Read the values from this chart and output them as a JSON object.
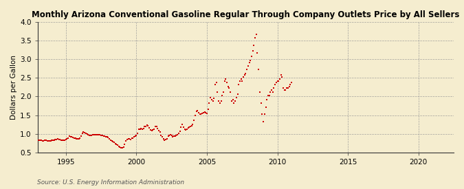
{
  "title": "Monthly Arizona Conventional Gasoline Regular Through Company Outlets Price by All Sellers",
  "ylabel": "Dollars per Gallon",
  "source": "Source: U.S. Energy Information Administration",
  "background_color": "#f5edcf",
  "plot_background_color": "#f5edcf",
  "marker_color": "#cc0000",
  "marker_size": 2.5,
  "xlim_start": 1993.0,
  "xlim_end": 2022.5,
  "ylim": [
    0.5,
    4.0
  ],
  "yticks": [
    0.5,
    1.0,
    1.5,
    2.0,
    2.5,
    3.0,
    3.5,
    4.0
  ],
  "xticks": [
    1995,
    2000,
    2005,
    2010,
    2015,
    2020
  ],
  "data": [
    [
      1993.08,
      0.82
    ],
    [
      1993.17,
      0.82
    ],
    [
      1993.25,
      0.83
    ],
    [
      1993.33,
      0.8
    ],
    [
      1993.42,
      0.81
    ],
    [
      1993.5,
      0.82
    ],
    [
      1993.58,
      0.82
    ],
    [
      1993.67,
      0.81
    ],
    [
      1993.75,
      0.8
    ],
    [
      1993.83,
      0.81
    ],
    [
      1993.92,
      0.81
    ],
    [
      1994.0,
      0.82
    ],
    [
      1994.08,
      0.82
    ],
    [
      1994.17,
      0.83
    ],
    [
      1994.25,
      0.84
    ],
    [
      1994.33,
      0.85
    ],
    [
      1994.42,
      0.86
    ],
    [
      1994.5,
      0.85
    ],
    [
      1994.58,
      0.84
    ],
    [
      1994.67,
      0.83
    ],
    [
      1994.75,
      0.83
    ],
    [
      1994.83,
      0.83
    ],
    [
      1994.92,
      0.83
    ],
    [
      1995.0,
      0.84
    ],
    [
      1995.08,
      0.86
    ],
    [
      1995.17,
      0.89
    ],
    [
      1995.25,
      0.93
    ],
    [
      1995.33,
      0.92
    ],
    [
      1995.42,
      0.91
    ],
    [
      1995.5,
      0.9
    ],
    [
      1995.58,
      0.89
    ],
    [
      1995.67,
      0.88
    ],
    [
      1995.75,
      0.87
    ],
    [
      1995.83,
      0.87
    ],
    [
      1995.92,
      0.87
    ],
    [
      1996.0,
      0.88
    ],
    [
      1996.08,
      0.93
    ],
    [
      1996.17,
      1.01
    ],
    [
      1996.25,
      1.05
    ],
    [
      1996.33,
      1.03
    ],
    [
      1996.42,
      1.01
    ],
    [
      1996.5,
      1.0
    ],
    [
      1996.58,
      0.97
    ],
    [
      1996.67,
      0.96
    ],
    [
      1996.75,
      0.96
    ],
    [
      1996.83,
      0.96
    ],
    [
      1996.92,
      0.97
    ],
    [
      1997.0,
      0.98
    ],
    [
      1997.08,
      0.97
    ],
    [
      1997.17,
      0.97
    ],
    [
      1997.25,
      0.97
    ],
    [
      1997.33,
      0.97
    ],
    [
      1997.42,
      0.97
    ],
    [
      1997.5,
      0.96
    ],
    [
      1997.58,
      0.95
    ],
    [
      1997.67,
      0.94
    ],
    [
      1997.75,
      0.93
    ],
    [
      1997.83,
      0.92
    ],
    [
      1997.92,
      0.91
    ],
    [
      1998.0,
      0.9
    ],
    [
      1998.08,
      0.87
    ],
    [
      1998.17,
      0.82
    ],
    [
      1998.25,
      0.8
    ],
    [
      1998.33,
      0.79
    ],
    [
      1998.42,
      0.77
    ],
    [
      1998.5,
      0.74
    ],
    [
      1998.58,
      0.71
    ],
    [
      1998.67,
      0.69
    ],
    [
      1998.75,
      0.67
    ],
    [
      1998.83,
      0.65
    ],
    [
      1998.92,
      0.63
    ],
    [
      1999.0,
      0.62
    ],
    [
      1999.08,
      0.65
    ],
    [
      1999.17,
      0.72
    ],
    [
      1999.25,
      0.8
    ],
    [
      1999.33,
      0.85
    ],
    [
      1999.42,
      0.87
    ],
    [
      1999.5,
      0.86
    ],
    [
      1999.58,
      0.85
    ],
    [
      1999.67,
      0.88
    ],
    [
      1999.75,
      0.88
    ],
    [
      1999.83,
      0.91
    ],
    [
      1999.92,
      0.94
    ],
    [
      2000.0,
      0.96
    ],
    [
      2000.08,
      1.02
    ],
    [
      2000.17,
      1.13
    ],
    [
      2000.25,
      1.13
    ],
    [
      2000.33,
      1.14
    ],
    [
      2000.42,
      1.13
    ],
    [
      2000.5,
      1.14
    ],
    [
      2000.58,
      1.19
    ],
    [
      2000.67,
      1.2
    ],
    [
      2000.75,
      1.23
    ],
    [
      2000.83,
      1.21
    ],
    [
      2000.92,
      1.15
    ],
    [
      2001.0,
      1.1
    ],
    [
      2001.08,
      1.08
    ],
    [
      2001.17,
      1.1
    ],
    [
      2001.25,
      1.12
    ],
    [
      2001.33,
      1.2
    ],
    [
      2001.42,
      1.2
    ],
    [
      2001.5,
      1.14
    ],
    [
      2001.58,
      1.08
    ],
    [
      2001.67,
      1.04
    ],
    [
      2001.75,
      0.96
    ],
    [
      2001.83,
      0.91
    ],
    [
      2001.92,
      0.86
    ],
    [
      2002.0,
      0.83
    ],
    [
      2002.08,
      0.85
    ],
    [
      2002.17,
      0.87
    ],
    [
      2002.25,
      0.93
    ],
    [
      2002.33,
      0.95
    ],
    [
      2002.42,
      0.97
    ],
    [
      2002.5,
      0.95
    ],
    [
      2002.58,
      0.92
    ],
    [
      2002.67,
      0.93
    ],
    [
      2002.75,
      0.93
    ],
    [
      2002.83,
      0.95
    ],
    [
      2002.92,
      0.98
    ],
    [
      2003.0,
      1.01
    ],
    [
      2003.08,
      1.07
    ],
    [
      2003.17,
      1.17
    ],
    [
      2003.25,
      1.26
    ],
    [
      2003.33,
      1.18
    ],
    [
      2003.42,
      1.12
    ],
    [
      2003.5,
      1.1
    ],
    [
      2003.58,
      1.12
    ],
    [
      2003.67,
      1.15
    ],
    [
      2003.75,
      1.18
    ],
    [
      2003.83,
      1.2
    ],
    [
      2003.92,
      1.22
    ],
    [
      2004.0,
      1.25
    ],
    [
      2004.08,
      1.37
    ],
    [
      2004.17,
      1.5
    ],
    [
      2004.25,
      1.6
    ],
    [
      2004.33,
      1.62
    ],
    [
      2004.42,
      1.56
    ],
    [
      2004.5,
      1.52
    ],
    [
      2004.58,
      1.52
    ],
    [
      2004.67,
      1.55
    ],
    [
      2004.75,
      1.56
    ],
    [
      2004.83,
      1.59
    ],
    [
      2004.92,
      1.57
    ],
    [
      2005.0,
      1.55
    ],
    [
      2005.08,
      1.66
    ],
    [
      2005.17,
      1.82
    ],
    [
      2005.25,
      1.97
    ],
    [
      2005.33,
      1.92
    ],
    [
      2005.42,
      1.88
    ],
    [
      2005.5,
      1.96
    ],
    [
      2005.58,
      2.32
    ],
    [
      2005.67,
      2.37
    ],
    [
      2005.75,
      2.12
    ],
    [
      2005.83,
      1.88
    ],
    [
      2005.92,
      1.82
    ],
    [
      2006.0,
      1.87
    ],
    [
      2006.08,
      2.02
    ],
    [
      2006.17,
      2.12
    ],
    [
      2006.25,
      2.42
    ],
    [
      2006.33,
      2.47
    ],
    [
      2006.42,
      2.37
    ],
    [
      2006.5,
      2.27
    ],
    [
      2006.58,
      2.22
    ],
    [
      2006.67,
      2.12
    ],
    [
      2006.75,
      1.87
    ],
    [
      2006.83,
      1.92
    ],
    [
      2006.92,
      1.82
    ],
    [
      2007.0,
      1.87
    ],
    [
      2007.08,
      1.97
    ],
    [
      2007.17,
      2.07
    ],
    [
      2007.25,
      2.32
    ],
    [
      2007.33,
      2.42
    ],
    [
      2007.42,
      2.47
    ],
    [
      2007.5,
      2.42
    ],
    [
      2007.58,
      2.52
    ],
    [
      2007.67,
      2.57
    ],
    [
      2007.75,
      2.62
    ],
    [
      2007.83,
      2.72
    ],
    [
      2007.92,
      2.82
    ],
    [
      2008.0,
      2.92
    ],
    [
      2008.08,
      2.97
    ],
    [
      2008.17,
      3.07
    ],
    [
      2008.25,
      3.22
    ],
    [
      2008.33,
      3.37
    ],
    [
      2008.42,
      3.57
    ],
    [
      2008.5,
      3.67
    ],
    [
      2008.58,
      3.17
    ],
    [
      2008.67,
      2.72
    ],
    [
      2008.75,
      2.12
    ],
    [
      2008.83,
      1.82
    ],
    [
      2008.92,
      1.52
    ],
    [
      2009.0,
      1.32
    ],
    [
      2009.08,
      1.52
    ],
    [
      2009.17,
      1.72
    ],
    [
      2009.25,
      1.92
    ],
    [
      2009.33,
      2.02
    ],
    [
      2009.42,
      2.02
    ],
    [
      2009.5,
      2.12
    ],
    [
      2009.58,
      2.17
    ],
    [
      2009.67,
      2.12
    ],
    [
      2009.75,
      2.22
    ],
    [
      2009.83,
      2.32
    ],
    [
      2009.92,
      2.37
    ],
    [
      2010.0,
      2.42
    ],
    [
      2010.08,
      2.42
    ],
    [
      2010.17,
      2.47
    ],
    [
      2010.25,
      2.57
    ],
    [
      2010.33,
      2.52
    ],
    [
      2010.42,
      2.22
    ],
    [
      2010.5,
      2.17
    ],
    [
      2010.58,
      2.17
    ],
    [
      2010.67,
      2.22
    ],
    [
      2010.75,
      2.22
    ],
    [
      2010.83,
      2.27
    ],
    [
      2010.92,
      2.32
    ],
    [
      2011.0,
      2.37
    ]
  ]
}
